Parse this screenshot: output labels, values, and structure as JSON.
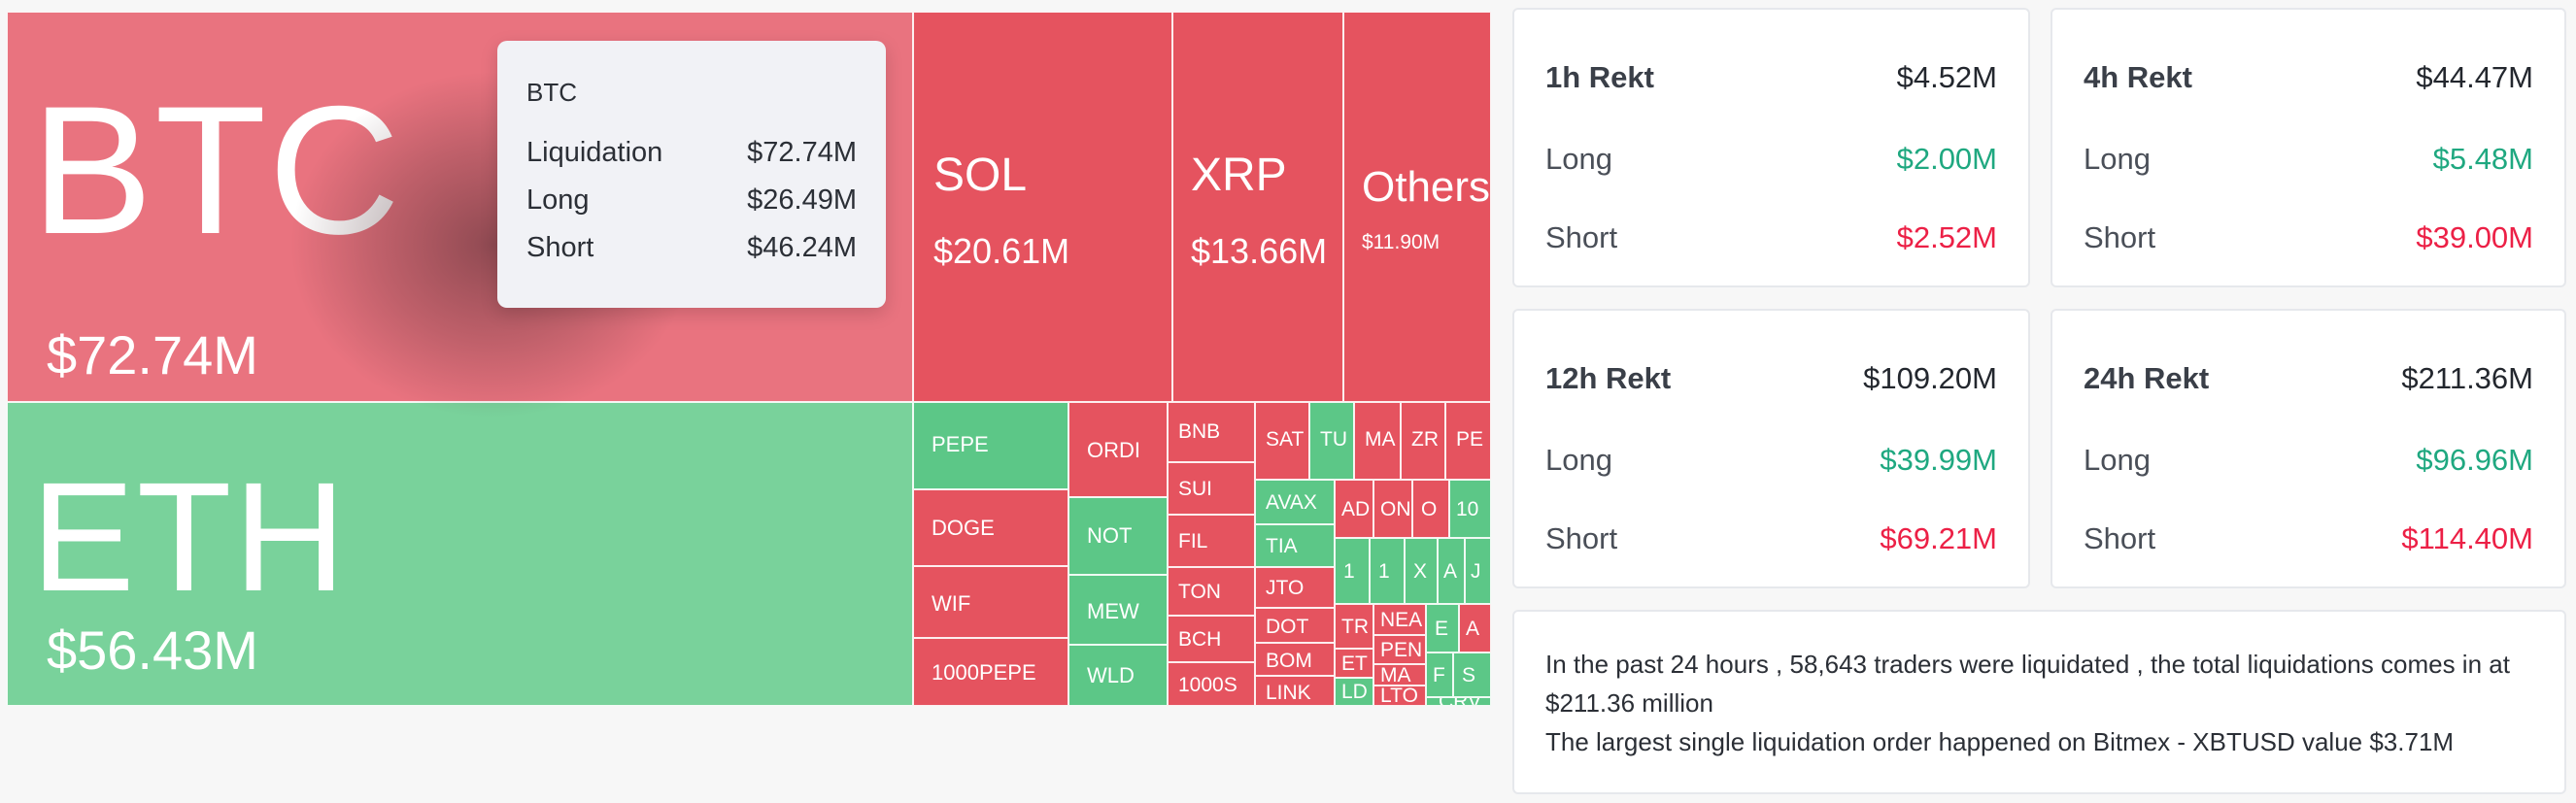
{
  "tooltip": {
    "title": "BTC",
    "rows": [
      {
        "label": "Liquidation",
        "value": "$72.74M"
      },
      {
        "label": "Long",
        "value": "$26.49M"
      },
      {
        "label": "Short",
        "value": "$46.24M"
      }
    ]
  },
  "treemap": {
    "btc": {
      "symbol": "BTC",
      "value": "$72.74M"
    },
    "eth": {
      "symbol": "ETH",
      "value": "$56.43M"
    },
    "sol": {
      "symbol": "SOL",
      "value": "$20.61M"
    },
    "xrp": {
      "symbol": "XRP",
      "value": "$13.66M"
    },
    "others": {
      "symbol": "Others",
      "value": "$11.90M"
    },
    "small": [
      "PEPE",
      "ORDI",
      "DOGE",
      "NOT",
      "WIF",
      "MEW",
      "1000PEPE",
      "WLD",
      "BNB",
      "SUI",
      "FIL",
      "TON",
      "BCH",
      "1000S",
      "SAT",
      "TU",
      "MA",
      "ZR",
      "PE",
      "AVAX",
      "TIA",
      "JTO",
      "DOT",
      "BOM",
      "LINK",
      "AD",
      "ON",
      "O",
      "10",
      "1",
      "1",
      "X",
      "A",
      "J",
      "TR",
      "NEA",
      "PEN",
      "E",
      "A",
      "ET",
      "MA",
      "F",
      "S",
      "LD",
      "LTO",
      "CRV"
    ],
    "colors": {
      "red": "#e5535f",
      "green": "#5cc787",
      "btc": "#e9737f",
      "eth": "#79d29b"
    }
  },
  "panels": [
    {
      "title": "1h Rekt",
      "total": "$4.52M",
      "long_label": "Long",
      "long": "$2.00M",
      "short_label": "Short",
      "short": "$2.52M"
    },
    {
      "title": "4h Rekt",
      "total": "$44.47M",
      "long_label": "Long",
      "long": "$5.48M",
      "short_label": "Short",
      "short": "$39.00M"
    },
    {
      "title": "12h Rekt",
      "total": "$109.20M",
      "long_label": "Long",
      "long": "$39.99M",
      "short_label": "Short",
      "short": "$69.21M"
    },
    {
      "title": "24h Rekt",
      "total": "$211.36M",
      "long_label": "Long",
      "long": "$96.96M",
      "short_label": "Short",
      "short": "$114.40M"
    }
  ],
  "summary": {
    "line1": "In the past 24 hours , 58,643 traders were liquidated , the total liquidations comes in at $211.36 million",
    "line2": "The largest single liquidation order happened on Bitmex - XBTUSD value $3.71M"
  },
  "accent": {
    "long": "#1fa880",
    "short": "#ec2046"
  }
}
